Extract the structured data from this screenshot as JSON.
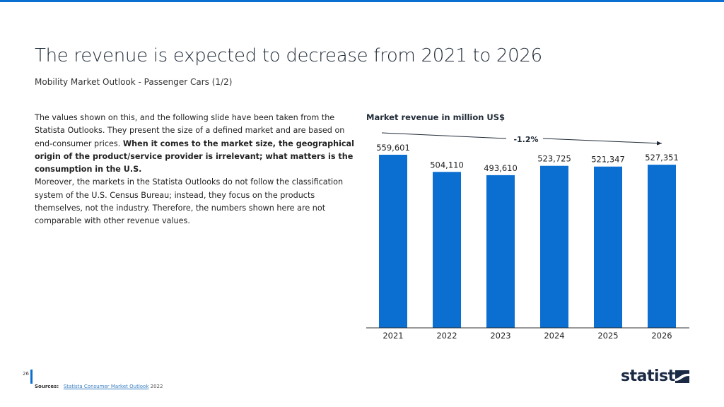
{
  "header": {
    "title": "The revenue is expected to decrease from 2021 to 2026",
    "subtitle": "Mobility Market Outlook - Passenger Cars (1/2)"
  },
  "body": {
    "p1_a": "The values shown on this, and the following slide have been taken from the Statista Outlooks. They present the size of a defined market and are based on end-consumer prices. ",
    "p1_b": "When it comes to the market size, the geographical origin of the product/service provider is irrelevant; what matters is the consumption in the U.S.",
    "p2": "Moreover, the markets in the Statista Outlooks do not follow the classification system of the U.S. Census Bureau; instead, they focus on the products themselves, not the industry. Therefore, the numbers shown here are not comparable with other revenue values."
  },
  "chart_data": {
    "type": "bar",
    "title": "Market revenue in million US$",
    "categories": [
      "2021",
      "2022",
      "2023",
      "2024",
      "2025",
      "2026"
    ],
    "values": [
      559601,
      504110,
      493610,
      523725,
      521347,
      527351
    ],
    "labels": [
      "559,601",
      "504,110",
      "493,610",
      "523,725",
      "521,347",
      "527,351"
    ],
    "ylim": [
      0,
      560000
    ],
    "annotation": "-1.2%",
    "bar_color": "#0a6fd1",
    "grid": false
  },
  "footer": {
    "page": "26",
    "sources_label": "Sources:",
    "source_link": "Statista Consumer Market Outlook",
    "source_year": " 2022",
    "logo": "statista"
  }
}
